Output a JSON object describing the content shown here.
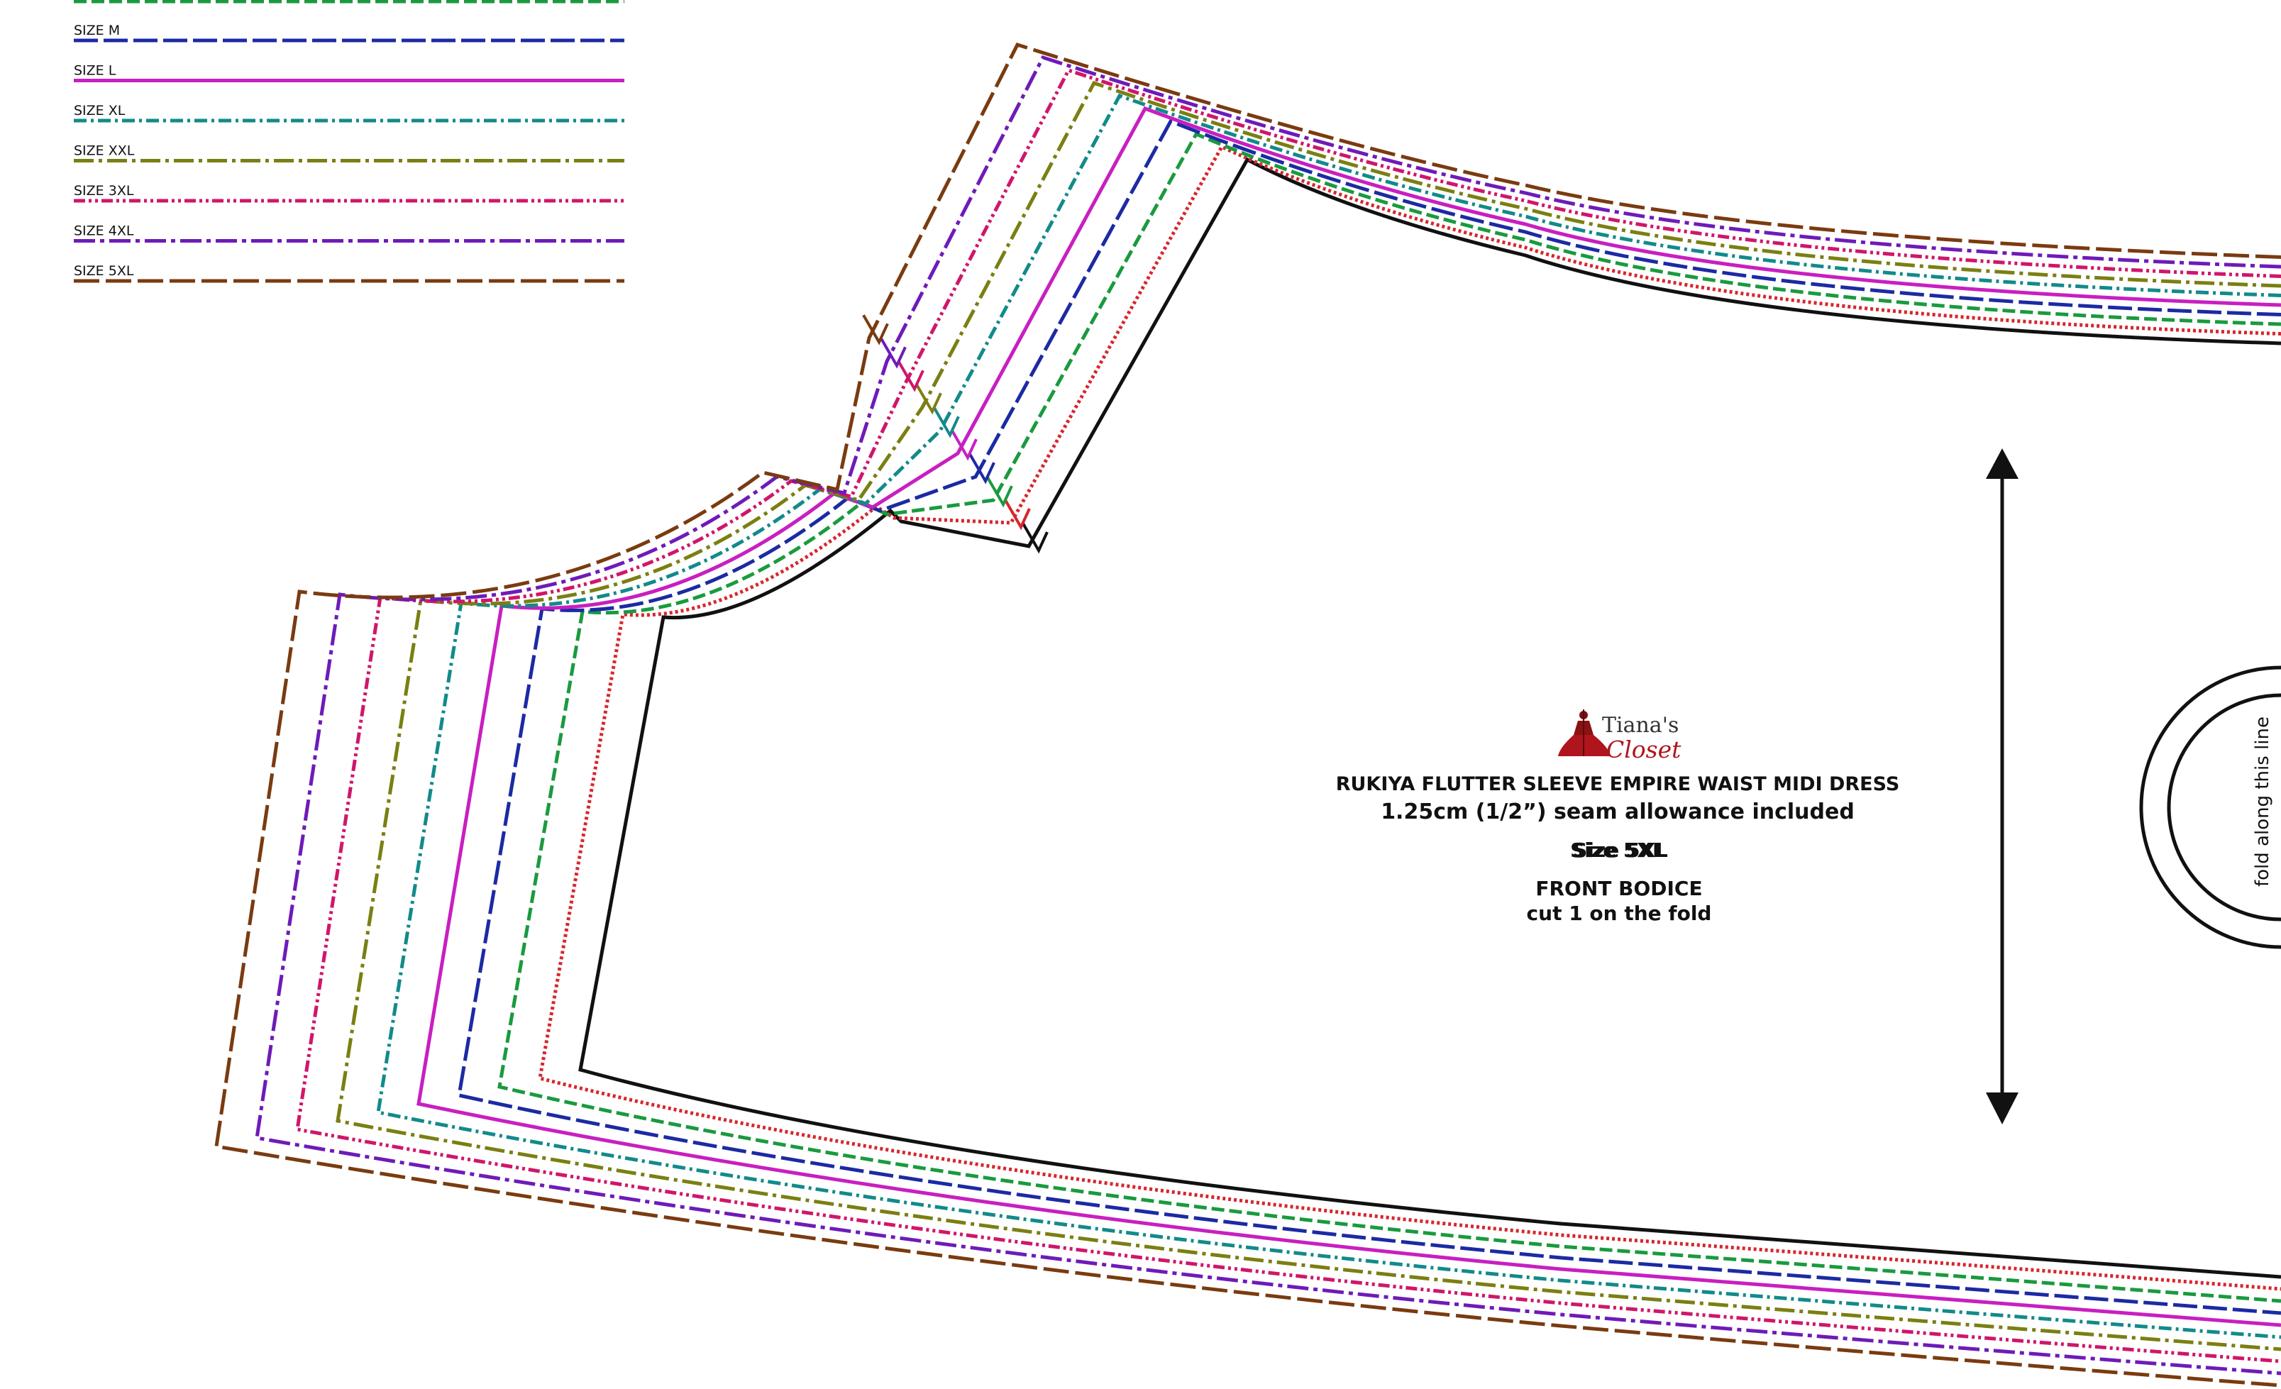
{
  "legend": [
    {
      "label": "SIZE M",
      "color": "#1c2aa3",
      "dash": "34 8"
    },
    {
      "label": "SIZE L",
      "color": "#c81fc0",
      "dash": ""
    },
    {
      "label": "SIZE XL",
      "color": "#128a8a",
      "dash": "18 6 4 6"
    },
    {
      "label": "SIZE XXL",
      "color": "#7a7f12",
      "dash": "28 7 5 7"
    },
    {
      "label": "SIZE 3XL",
      "color": "#d0166a",
      "dash": "16 5 4 5 4 5"
    },
    {
      "label": "SIZE 4XL",
      "color": "#6e1bb8",
      "dash": "30 7 6 7"
    },
    {
      "label": "SIZE 5XL",
      "color": "#7a3b10",
      "dash": "36 9"
    }
  ],
  "legend_top_partial": {
    "color": "#1a9a3e"
  },
  "extra_sizes": [
    {
      "color": "#1a9a3e",
      "dash": "18 7"
    },
    {
      "color": "#d7262e",
      "dash": "4 4"
    },
    {
      "color": "#111111",
      "dash": ""
    }
  ],
  "brand": {
    "top": "Tiana's",
    "bottom": "Closet"
  },
  "title": "RUKIYA FLUTTER SLEEVE EMPIRE WAIST MIDI DRESS",
  "seam_allowance": "1.25cm (1/2”) seam allowance included",
  "size_stack_text": "Size 5XL",
  "piece_name": "FRONT BODICE",
  "cut_instruction": "cut 1 on the fold",
  "fold_text": "fold along this line",
  "colors": {
    "ink": "#111111",
    "brand_red": "#b0141c"
  }
}
